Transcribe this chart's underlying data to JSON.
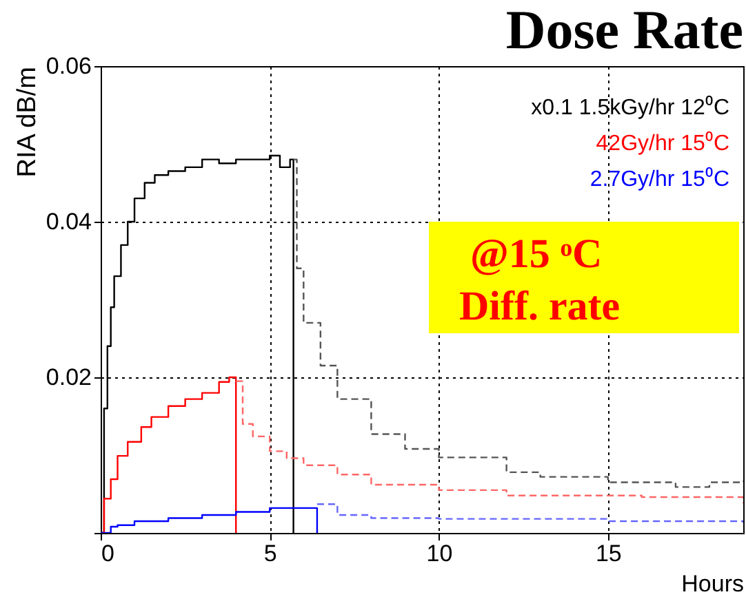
{
  "chart_data": {
    "type": "step",
    "title": "Dose Rate",
    "xlabel": "Hours",
    "ylabel": "RIA dB/m",
    "xlim": [
      0,
      19
    ],
    "xticks": [
      0,
      5,
      10,
      15
    ],
    "ylim": [
      0,
      0.06
    ],
    "yticks": [
      {
        "value": 0,
        "label": null
      },
      0.02,
      0.04,
      0.06
    ],
    "grid": true,
    "legend": "top right",
    "annotations": [
      "@15 ᵒC",
      "Diff. rate"
    ],
    "series": [
      {
        "name": "x0.1 1.5kGy/hr 12⁰C",
        "color": "#000000",
        "line_style": "solid",
        "x": [
          0,
          0.1,
          0.2,
          0.3,
          0.4,
          0.6,
          0.8,
          1.0,
          1.3,
          1.6,
          2,
          2.5,
          3,
          3.5,
          4,
          4.5,
          5,
          5.3,
          5.6,
          5.7
        ],
        "values": [
          0,
          0.016,
          0.024,
          0.029,
          0.033,
          0.037,
          0.04,
          0.043,
          0.045,
          0.046,
          0.0465,
          0.047,
          0.048,
          0.0475,
          0.048,
          0.048,
          0.0485,
          0.047,
          0.048,
          0
        ]
      },
      {
        "color": "#555555",
        "line_style": "dashed",
        "x": [
          5.7,
          5.8,
          6,
          6.5,
          7,
          8,
          9,
          10,
          12,
          13,
          15,
          17,
          18,
          19
        ],
        "values": [
          0.048,
          0.034,
          0.027,
          0.0215,
          0.0172,
          0.0127,
          0.0108,
          0.0097,
          0.0078,
          0.0072,
          0.0065,
          0.0059,
          0.0065,
          0.0067
        ]
      },
      {
        "name": "42Gy/hr 15⁰C",
        "color": "#ff0000",
        "line_style": "solid",
        "x": [
          0,
          0.1,
          0.3,
          0.5,
          0.8,
          1.2,
          1.5,
          2,
          2.5,
          3,
          3.5,
          3.8,
          4.0
        ],
        "values": [
          0,
          0.0044,
          0.0069,
          0.0099,
          0.0117,
          0.0136,
          0.0149,
          0.0163,
          0.0172,
          0.018,
          0.0194,
          0.02,
          0
        ]
      },
      {
        "color": "#ff6666",
        "line_style": "dashed",
        "x": [
          4,
          4.2,
          4.5,
          5,
          5.5,
          6,
          7,
          8,
          10,
          12,
          14,
          16,
          19
        ],
        "values": [
          0.0195,
          0.014,
          0.0124,
          0.0105,
          0.0096,
          0.0087,
          0.0075,
          0.0062,
          0.0055,
          0.0048,
          0.0048,
          0.0046,
          0.0038
        ]
      },
      {
        "name": "2.7Gy/hr 15⁰C",
        "color": "#0000ff",
        "line_style": "solid",
        "x": [
          0,
          0.3,
          0.5,
          1,
          2,
          3,
          4,
          5,
          6.4
        ],
        "values": [
          0,
          0.0008,
          0.001,
          0.0015,
          0.0019,
          0.0023,
          0.0027,
          0.0032,
          0
        ]
      },
      {
        "color": "#6666ff",
        "line_style": "dashed",
        "x": [
          6.4,
          7,
          8,
          10,
          15,
          19
        ],
        "values": [
          0.0037,
          0.0023,
          0.0019,
          0.0018,
          0.0015,
          0.0013
        ]
      }
    ]
  }
}
